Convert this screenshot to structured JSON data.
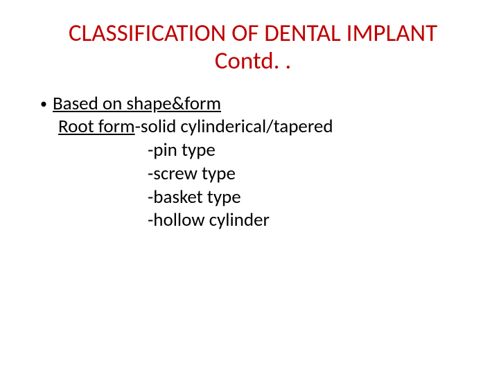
{
  "title_line1": "CLASSIFICATION OF DENTAL IMPLANT",
  "title_line2": "Contd. .",
  "bullet_label": "Based on shape&form",
  "root_form_label": "Root form",
  "root_form_suffix": "-solid cylinderical/tapered",
  "types": {
    "t1": "-pin type",
    "t2": "-screw type",
    "t3": "-basket type",
    "t4": "-hollow cylinder"
  },
  "colors": {
    "title": "#c00000",
    "body_text": "#000000",
    "background": "#ffffff"
  },
  "fontsize": {
    "title": 35,
    "body": 27
  }
}
